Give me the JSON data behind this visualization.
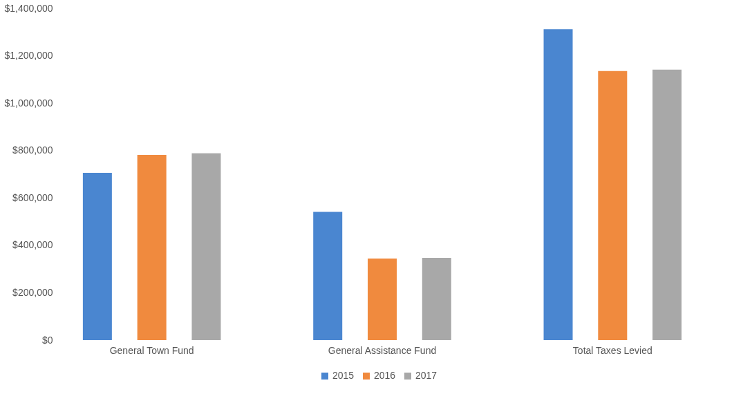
{
  "chart_data": {
    "type": "bar",
    "categories": [
      "General Town Fund",
      "General Assistance Fund",
      "Total Taxes Levied"
    ],
    "series": [
      {
        "name": "2015",
        "color": "#4a86d0",
        "values": [
          706000,
          541000,
          1312000
        ]
      },
      {
        "name": "2016",
        "color": "#f08a3e",
        "values": [
          782000,
          344000,
          1135000
        ]
      },
      {
        "name": "2017",
        "color": "#a8a8a8",
        "values": [
          788000,
          347000,
          1141000
        ]
      }
    ],
    "ylim": [
      0,
      1400000
    ],
    "yticks": [
      {
        "value": 0,
        "label": "$0"
      },
      {
        "value": 200000,
        "label": "$200,000"
      },
      {
        "value": 400000,
        "label": "$400,000"
      },
      {
        "value": 600000,
        "label": "$600,000"
      },
      {
        "value": 800000,
        "label": "$800,000"
      },
      {
        "value": 1000000,
        "label": "$1,000,000"
      },
      {
        "value": 1200000,
        "label": "$1,200,000"
      },
      {
        "value": 1400000,
        "label": "$1,400,000"
      }
    ],
    "legend": "bottom",
    "grid": false
  }
}
